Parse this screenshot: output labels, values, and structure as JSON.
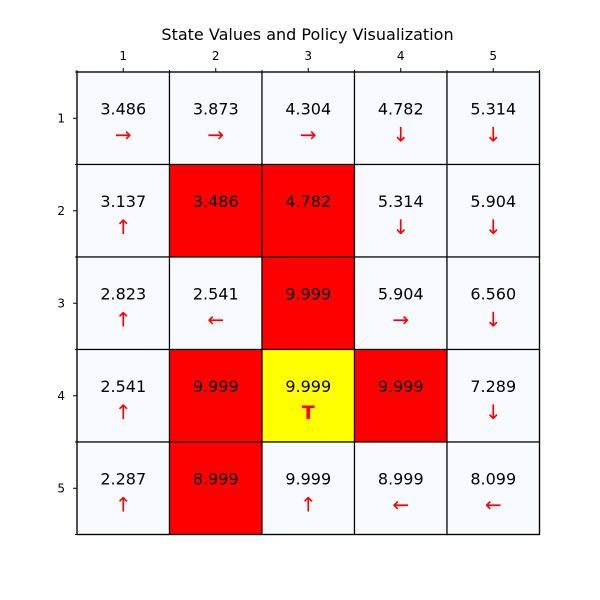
{
  "chart_data": {
    "type": "heatmap",
    "title": "State Values and Policy Visualization",
    "col_labels": [
      "1",
      "2",
      "3",
      "4",
      "5"
    ],
    "row_labels": [
      "1",
      "2",
      "3",
      "4",
      "5"
    ],
    "rows": [
      [
        {
          "value": "3.486",
          "symbol": "→",
          "kind": "normal"
        },
        {
          "value": "3.873",
          "symbol": "→",
          "kind": "normal"
        },
        {
          "value": "4.304",
          "symbol": "→",
          "kind": "normal"
        },
        {
          "value": "4.782",
          "symbol": "↓",
          "kind": "normal"
        },
        {
          "value": "5.314",
          "symbol": "↓",
          "kind": "normal"
        }
      ],
      [
        {
          "value": "3.137",
          "symbol": "↑",
          "kind": "normal"
        },
        {
          "value": "3.486",
          "symbol": "",
          "kind": "obstacle"
        },
        {
          "value": "4.782",
          "symbol": "",
          "kind": "obstacle"
        },
        {
          "value": "5.314",
          "symbol": "↓",
          "kind": "normal"
        },
        {
          "value": "5.904",
          "symbol": "↓",
          "kind": "normal"
        }
      ],
      [
        {
          "value": "2.823",
          "symbol": "↑",
          "kind": "normal"
        },
        {
          "value": "2.541",
          "symbol": "←",
          "kind": "normal"
        },
        {
          "value": "9.999",
          "symbol": "",
          "kind": "obstacle"
        },
        {
          "value": "5.904",
          "symbol": "→",
          "kind": "normal"
        },
        {
          "value": "6.560",
          "symbol": "↓",
          "kind": "normal"
        }
      ],
      [
        {
          "value": "2.541",
          "symbol": "↑",
          "kind": "normal"
        },
        {
          "value": "9.999",
          "symbol": "",
          "kind": "obstacle"
        },
        {
          "value": "9.999",
          "symbol": "T",
          "kind": "terminal"
        },
        {
          "value": "9.999",
          "symbol": "",
          "kind": "obstacle"
        },
        {
          "value": "7.289",
          "symbol": "↓",
          "kind": "normal"
        }
      ],
      [
        {
          "value": "2.287",
          "symbol": "↑",
          "kind": "normal"
        },
        {
          "value": "8.999",
          "symbol": "",
          "kind": "obstacle"
        },
        {
          "value": "9.999",
          "symbol": "↑",
          "kind": "normal"
        },
        {
          "value": "8.999",
          "symbol": "←",
          "kind": "normal"
        },
        {
          "value": "8.099",
          "symbol": "←",
          "kind": "normal"
        }
      ]
    ],
    "colors": {
      "normal": "#f7fbff",
      "obstacle": "#ff0000",
      "terminal": "#ffff00",
      "symbol": "#ff0000",
      "grid": "#000000",
      "text": "#000000"
    }
  }
}
